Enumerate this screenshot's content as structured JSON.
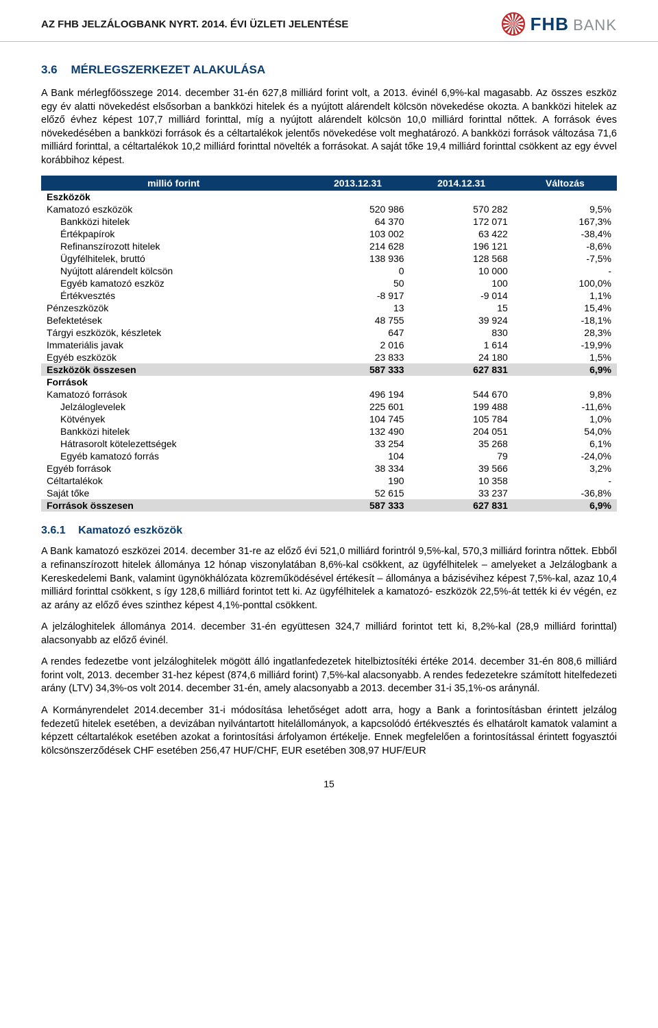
{
  "header": {
    "title": "AZ FHB JELZÁLOGBANK NYRT. 2014. ÉVI ÜZLETI JELENTÉSE",
    "logo_fhb": "FHB",
    "logo_bank": "BANK"
  },
  "section": {
    "num": "3.6",
    "title": "MÉRLEGSZERKEZET ALAKULÁSA"
  },
  "intro_paragraph": "A Bank mérlegfőösszege 2014. december 31-én 627,8 milliárd forint volt, a 2013. évinél 6,9%-kal magasabb. Az összes eszköz egy év alatti növekedést elsősorban a bankközi hitelek és a nyújtott alárendelt kölcsön növekedése okozta. A bankközi hitelek az előző évhez képest 107,7 milliárd forinttal, míg a nyújtott alárendelt kölcsön 10,0 milliárd forinttal nőttek. A források éves növekedésében a bankközi források és a céltartalékok jelentős növekedése volt meghatározó. A bankközi források változása 71,6 milliárd forinttal, a céltartalékok 10,2 milliárd forinttal növelték a forrásokat. A saját tőke 19,4 milliárd forinttal csökkent az egy évvel korábbihoz képest.",
  "table": {
    "headers": [
      "millió forint",
      "2013.12.31",
      "2014.12.31",
      "Változás"
    ],
    "col_align": [
      "left",
      "right",
      "right",
      "right"
    ],
    "header_bg": "#0b3c6e",
    "header_fg": "#ffffff",
    "total_bg": "#d9d9d9",
    "rows": [
      {
        "type": "section",
        "cells": [
          "Eszközök",
          "",
          "",
          ""
        ]
      },
      {
        "type": "data",
        "indent": 0,
        "cells": [
          "Kamatozó eszközök",
          "520 986",
          "570 282",
          "9,5%"
        ]
      },
      {
        "type": "data",
        "indent": 1,
        "cells": [
          "Bankközi hitelek",
          "64 370",
          "172 071",
          "167,3%"
        ]
      },
      {
        "type": "data",
        "indent": 1,
        "cells": [
          "Értékpapírok",
          "103 002",
          "63 422",
          "-38,4%"
        ]
      },
      {
        "type": "data",
        "indent": 1,
        "cells": [
          "Refinanszírozott hitelek",
          "214 628",
          "196 121",
          "-8,6%"
        ]
      },
      {
        "type": "data",
        "indent": 1,
        "cells": [
          "Ügyfélhitelek, bruttó",
          "138 936",
          "128 568",
          "-7,5%"
        ]
      },
      {
        "type": "data",
        "indent": 1,
        "cells": [
          "Nyújtott alárendelt kölcsön",
          "0",
          "10 000",
          "-"
        ]
      },
      {
        "type": "data",
        "indent": 1,
        "cells": [
          "Egyéb kamatozó eszköz",
          "50",
          "100",
          "100,0%"
        ]
      },
      {
        "type": "data",
        "indent": 1,
        "cells": [
          "Értékvesztés",
          "-8 917",
          "-9 014",
          "1,1%"
        ]
      },
      {
        "type": "data",
        "indent": 0,
        "cells": [
          "Pénzeszközök",
          "13",
          "15",
          "15,4%"
        ]
      },
      {
        "type": "data",
        "indent": 0,
        "cells": [
          "Befektetések",
          "48 755",
          "39 924",
          "-18,1%"
        ]
      },
      {
        "type": "data",
        "indent": 0,
        "cells": [
          "Tárgyi eszközök, készletek",
          "647",
          "830",
          "28,3%"
        ]
      },
      {
        "type": "data",
        "indent": 0,
        "cells": [
          "Immateriális javak",
          "2 016",
          "1 614",
          "-19,9%"
        ]
      },
      {
        "type": "data",
        "indent": 0,
        "cells": [
          "Egyéb eszközök",
          "23 833",
          "24 180",
          "1,5%"
        ]
      },
      {
        "type": "total",
        "cells": [
          "Eszközök összesen",
          "587 333",
          "627 831",
          "6,9%"
        ]
      },
      {
        "type": "section",
        "cells": [
          "Források",
          "",
          "",
          ""
        ]
      },
      {
        "type": "data",
        "indent": 0,
        "cells": [
          "Kamatozó források",
          "496 194",
          "544 670",
          "9,8%"
        ]
      },
      {
        "type": "data",
        "indent": 1,
        "cells": [
          "Jelzáloglevelek",
          "225 601",
          "199 488",
          "-11,6%"
        ]
      },
      {
        "type": "data",
        "indent": 1,
        "cells": [
          "Kötvények",
          "104 745",
          "105 784",
          "1,0%"
        ]
      },
      {
        "type": "data",
        "indent": 1,
        "cells": [
          "Bankközi hitelek",
          "132 490",
          "204 051",
          "54,0%"
        ]
      },
      {
        "type": "data",
        "indent": 1,
        "cells": [
          "Hátrasorolt kötelezettségek",
          "33 254",
          "35 268",
          "6,1%"
        ]
      },
      {
        "type": "data",
        "indent": 1,
        "cells": [
          "Egyéb kamatozó forrás",
          "104",
          "79",
          "-24,0%"
        ]
      },
      {
        "type": "data",
        "indent": 0,
        "cells": [
          "Egyéb források",
          "38 334",
          "39 566",
          "3,2%"
        ]
      },
      {
        "type": "data",
        "indent": 0,
        "cells": [
          "Céltartalékok",
          "190",
          "10 358",
          "-"
        ]
      },
      {
        "type": "data",
        "indent": 0,
        "cells": [
          "Saját tőke",
          "52 615",
          "33 237",
          "-36,8%"
        ]
      },
      {
        "type": "total",
        "cells": [
          "Források összesen",
          "587 333",
          "627 831",
          "6,9%"
        ]
      }
    ]
  },
  "subsection": {
    "num": "3.6.1",
    "title": "Kamatozó eszközök"
  },
  "body_paragraphs": [
    "A Bank kamatozó eszközei 2014. december 31-re az előző évi 521,0 milliárd forintról 9,5%-kal, 570,3 milliárd forintra nőttek. Ebből a refinanszírozott hitelek állománya 12 hónap viszonylatában 8,6%-kal csökkent, az ügyfélhitelek – amelyeket a Jelzálogbank a Kereskedelemi Bank, valamint ügynökhálózata közreműködésével értékesít – állománya a bázisévihez képest 7,5%-kal, azaz 10,4 milliárd forinttal csökkent, s így 128,6 milliárd forintot tett ki. Az ügyfélhitelek a kamatozó- eszközök 22,5%-át tették ki év végén, ez az arány az előző éves szinthez képest 4,1%-ponttal csökkent.",
    "A jelzáloghitelek állománya 2014. december 31-én együttesen 324,7 milliárd forintot tett ki, 8,2%-kal (28,9 milliárd forinttal) alacsonyabb az előző évinél.",
    "A rendes fedezetbe vont jelzáloghitelek mögött álló ingatlanfedezetek hitelbiztosítéki értéke 2014. december 31-én 808,6 milliárd forint volt, 2013. december 31-hez képest (874,6 milliárd forint) 7,5%-kal alacsonyabb. A rendes fedezetekre számított hitelfedezeti arány (LTV) 34,3%-os volt 2014. december 31-én, amely alacsonyabb a 2013. december 31-i 35,1%-os aránynál.",
    "A Kormányrendelet 2014.december 31-i módosítása lehetőséget adott arra, hogy a Bank a forintosításban érintett jelzálog fedezetű hitelek esetében, a devizában nyilvántartott hitelállományok, a kapcsolódó értékvesztés és elhatárolt kamatok valamint a képzett céltartalékok esetében azokat a forintosítási árfolyamon értékelje. Ennek megfelelően a forintosítással érintett fogyasztói kölcsönszerződések CHF esetében 256,47 HUF/CHF, EUR esetében 308,97 HUF/EUR"
  ],
  "page_number": "15"
}
